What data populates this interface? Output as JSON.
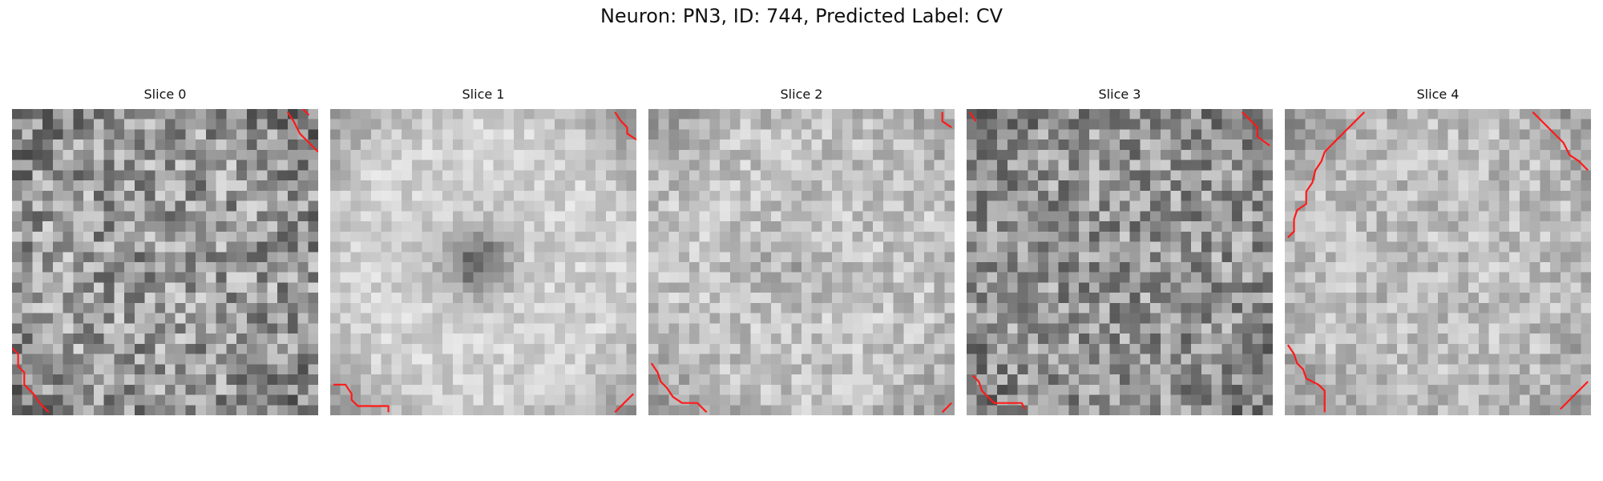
{
  "figure": {
    "title": "Neuron: PN3, ID: 744, Predicted Label: CV"
  },
  "panels": [
    {
      "label": "Slice 0",
      "texture": {
        "seed": 11,
        "mean": 0.6,
        "spread": 0.26,
        "center_dark": 0.0,
        "edge_dark": 0.18
      },
      "contours": [
        [
          [
            0.95,
            0.0
          ],
          [
            0.97,
            0.02
          ]
        ],
        [
          [
            0.9,
            0.01
          ],
          [
            0.92,
            0.04
          ],
          [
            0.94,
            0.08
          ],
          [
            0.97,
            0.11
          ],
          [
            1.0,
            0.14
          ]
        ],
        [
          [
            0.0,
            0.78
          ],
          [
            0.02,
            0.8
          ],
          [
            0.02,
            0.84
          ],
          [
            0.04,
            0.86
          ],
          [
            0.04,
            0.9
          ],
          [
            0.07,
            0.93
          ],
          [
            0.09,
            0.96
          ],
          [
            0.12,
            0.99
          ]
        ]
      ]
    },
    {
      "label": "Slice 1",
      "texture": {
        "seed": 23,
        "mean": 0.82,
        "spread": 0.1,
        "center_dark": 0.42,
        "edge_dark": 0.3
      },
      "contours": [
        [
          [
            0.93,
            0.01
          ],
          [
            0.95,
            0.04
          ],
          [
            0.97,
            0.06
          ],
          [
            0.97,
            0.08
          ],
          [
            1.0,
            0.1
          ]
        ],
        [
          [
            0.01,
            0.9
          ],
          [
            0.05,
            0.9
          ],
          [
            0.07,
            0.93
          ],
          [
            0.07,
            0.95
          ],
          [
            0.09,
            0.97
          ],
          [
            0.14,
            0.97
          ],
          [
            0.19,
            0.97
          ],
          [
            0.19,
            0.99
          ]
        ],
        [
          [
            0.93,
            0.99
          ],
          [
            0.96,
            0.96
          ],
          [
            0.99,
            0.93
          ]
        ]
      ]
    },
    {
      "label": "Slice 2",
      "texture": {
        "seed": 37,
        "mean": 0.76,
        "spread": 0.14,
        "center_dark": 0.08,
        "edge_dark": 0.2
      },
      "contours": [
        [
          [
            0.96,
            0.01
          ],
          [
            0.96,
            0.04
          ],
          [
            0.99,
            0.06
          ]
        ],
        [
          [
            0.01,
            0.83
          ],
          [
            0.03,
            0.86
          ],
          [
            0.04,
            0.89
          ],
          [
            0.06,
            0.91
          ],
          [
            0.08,
            0.94
          ],
          [
            0.11,
            0.96
          ],
          [
            0.16,
            0.96
          ],
          [
            0.19,
            0.99
          ]
        ],
        [
          [
            0.96,
            0.99
          ],
          [
            0.99,
            0.96
          ]
        ]
      ]
    },
    {
      "label": "Slice 3",
      "texture": {
        "seed": 53,
        "mean": 0.58,
        "spread": 0.24,
        "center_dark": 0.0,
        "edge_dark": 0.14
      },
      "contours": [
        [
          [
            0.01,
            0.01
          ],
          [
            0.03,
            0.04
          ]
        ],
        [
          [
            0.9,
            0.01
          ],
          [
            0.93,
            0.04
          ],
          [
            0.95,
            0.06
          ],
          [
            0.95,
            0.09
          ],
          [
            0.99,
            0.12
          ]
        ],
        [
          [
            0.02,
            0.87
          ],
          [
            0.04,
            0.89
          ],
          [
            0.05,
            0.92
          ],
          [
            0.07,
            0.94
          ],
          [
            0.09,
            0.96
          ],
          [
            0.14,
            0.96
          ],
          [
            0.18,
            0.96
          ],
          [
            0.19,
            0.98
          ]
        ]
      ]
    },
    {
      "label": "Slice 4",
      "texture": {
        "seed": 71,
        "mean": 0.74,
        "spread": 0.14,
        "center_dark": 0.0,
        "edge_dark": 0.22
      },
      "contours": [
        [
          [
            0.26,
            0.01
          ],
          [
            0.21,
            0.06
          ],
          [
            0.17,
            0.1
          ],
          [
            0.13,
            0.14
          ],
          [
            0.12,
            0.17
          ],
          [
            0.1,
            0.2
          ],
          [
            0.09,
            0.24
          ],
          [
            0.07,
            0.27
          ],
          [
            0.07,
            0.31
          ],
          [
            0.04,
            0.33
          ],
          [
            0.03,
            0.36
          ],
          [
            0.03,
            0.4
          ],
          [
            0.01,
            0.42
          ]
        ],
        [
          [
            0.81,
            0.01
          ],
          [
            0.85,
            0.05
          ],
          [
            0.88,
            0.08
          ],
          [
            0.91,
            0.11
          ],
          [
            0.93,
            0.15
          ],
          [
            0.96,
            0.17
          ],
          [
            0.99,
            0.2
          ]
        ],
        [
          [
            0.01,
            0.77
          ],
          [
            0.03,
            0.8
          ],
          [
            0.04,
            0.83
          ],
          [
            0.06,
            0.85
          ],
          [
            0.07,
            0.88
          ],
          [
            0.09,
            0.89
          ],
          [
            0.11,
            0.9
          ],
          [
            0.13,
            0.92
          ],
          [
            0.13,
            0.96
          ],
          [
            0.13,
            0.99
          ]
        ],
        [
          [
            0.9,
            0.98
          ],
          [
            0.93,
            0.95
          ],
          [
            0.96,
            0.92
          ],
          [
            0.99,
            0.89
          ]
        ]
      ]
    }
  ],
  "colors": {
    "contour": "#ff1a1a",
    "background": "#ffffff"
  }
}
